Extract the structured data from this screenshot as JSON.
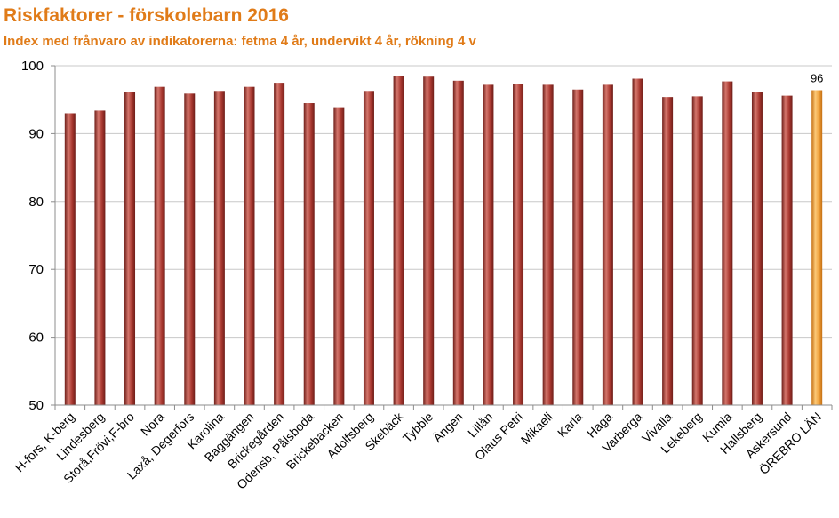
{
  "chart_data": {
    "type": "bar",
    "title": "Riskfaktorer - förskolebarn 2016",
    "subtitle": "Index med frånvaro av indikatorerna: fetma 4 år, undervikt 4 år, rökning 4 v",
    "categories": [
      "H-fors, K-berg",
      "Lindesberg",
      "Storå,Frövi,F-bro",
      "Nora",
      "Laxå, Degerfors",
      "Karolina",
      "Baggängen",
      "Brickegården",
      "Odensb, Pålsboda",
      "Brickebacken",
      "Adolfsberg",
      "Skebäck",
      "Tybble",
      "Ängen",
      "Lillån",
      "Olaus Petri",
      "Mikaeli",
      "Karla",
      "Haga",
      "Varberga",
      "Vivalla",
      "Lekeberg",
      "Kumla",
      "Hallsberg",
      "Askersund",
      "ÖREBRO LÄN"
    ],
    "values": [
      93.0,
      93.4,
      96.1,
      96.9,
      95.9,
      96.3,
      96.9,
      97.5,
      94.5,
      93.9,
      96.3,
      98.5,
      98.4,
      97.8,
      97.2,
      97.3,
      97.2,
      96.5,
      97.2,
      98.1,
      95.4,
      95.5,
      97.7,
      96.1,
      95.6,
      96.4
    ],
    "ylim": [
      50,
      100
    ],
    "yticks": [
      50,
      60,
      70,
      80,
      90,
      100
    ],
    "grid": true,
    "highlight_index": 25,
    "data_labels": [
      {
        "index": 25,
        "text": "96"
      }
    ],
    "colors": {
      "bar": "#a8372f",
      "bar_light": "#d4766c",
      "bar_dark": "#6e1e19",
      "highlight": "#f0a03a",
      "highlight_light": "#fcc977",
      "highlight_dark": "#c46f12",
      "title": "#e07b18",
      "grid": "#c8c8c8",
      "axis": "#8c8c8c"
    }
  }
}
